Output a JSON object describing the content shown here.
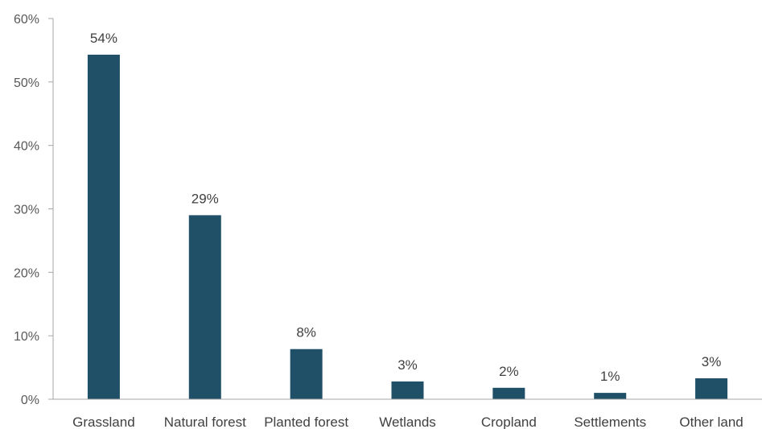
{
  "chart_data": {
    "type": "bar",
    "title": "",
    "xlabel": "",
    "ylabel": "",
    "categories": [
      "Grassland",
      "Natural forest",
      "Planted forest",
      "Wetlands",
      "Cropland",
      "Settlements",
      "Other land"
    ],
    "values": [
      54.3,
      29.0,
      7.9,
      2.8,
      1.8,
      1.0,
      3.3
    ],
    "data_labels": [
      "54%",
      "29%",
      "8%",
      "3%",
      "2%",
      "1%",
      "3%"
    ],
    "ylim": [
      0,
      60
    ],
    "yticks": [
      0,
      10,
      20,
      30,
      40,
      50,
      60
    ],
    "ytick_labels": [
      "0%",
      "10%",
      "20%",
      "30%",
      "40%",
      "50%",
      "60%"
    ],
    "grid": false,
    "legend": "none",
    "bar_color": "#1f5068",
    "axis_color": "#a6a6a6"
  }
}
